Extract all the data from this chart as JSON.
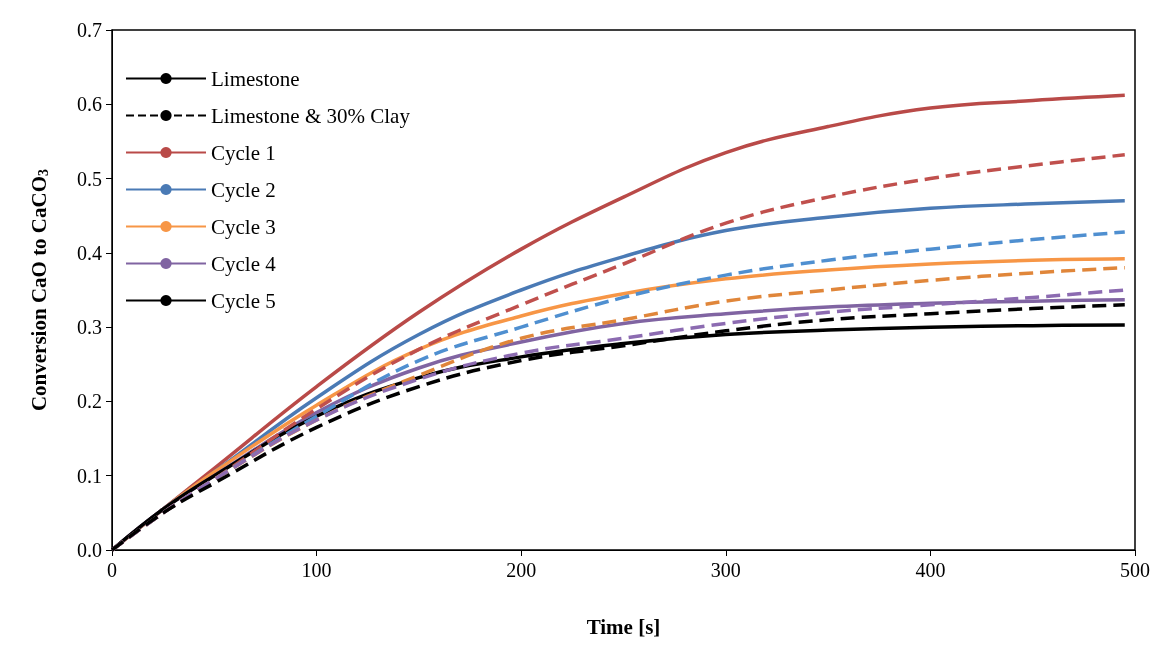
{
  "chart_data": {
    "type": "line",
    "xlabel": "Time [s]",
    "ylabel": "Conversion CaO to CaCO$_{3}$",
    "xlim": [
      0,
      500
    ],
    "xticks": [
      0,
      100,
      200,
      300,
      400,
      500
    ],
    "ylim": [
      0,
      0.7
    ],
    "yticks": [
      {
        "value": 0,
        "label": "0.0"
      },
      0.1,
      0.2,
      0.3,
      0.4,
      0.5,
      0.6,
      0.7
    ],
    "grid": false,
    "legend": "top left",
    "marker": "none",
    "x": [
      0,
      25,
      50,
      100,
      150,
      200,
      250,
      300,
      350,
      400,
      450,
      495
    ],
    "series": [
      {
        "name": "Limestone",
        "color": "#000000",
        "line_style": "solid",
        "values": [
          null,
          null,
          null,
          null,
          null,
          null,
          null,
          null,
          null,
          null,
          null,
          null
        ]
      },
      {
        "name": "Limestone & 30% Clay",
        "color": "#000000",
        "line_style": "dashed",
        "values": [
          null,
          null,
          null,
          null,
          null,
          null,
          null,
          null,
          null,
          null,
          null,
          null
        ]
      },
      {
        "name": "Cycle 1",
        "color": "#b94a48",
        "line_style": "solid",
        "values": [
          0,
          0.055,
          0.11,
          0.22,
          0.32,
          0.405,
          0.475,
          0.535,
          0.57,
          0.595,
          0.605,
          0.612
        ]
      },
      {
        "name": "Cycle 2",
        "color": "#4a7ab5",
        "line_style": "solid",
        "values": [
          0,
          0.055,
          0.105,
          0.205,
          0.29,
          0.35,
          0.395,
          0.43,
          0.448,
          0.46,
          0.466,
          0.47
        ]
      },
      {
        "name": "Cycle 3",
        "color": "#f79646",
        "line_style": "solid",
        "values": [
          0,
          0.055,
          0.105,
          0.195,
          0.27,
          0.315,
          0.345,
          0.365,
          0.377,
          0.385,
          0.39,
          0.392
        ]
      },
      {
        "name": "Cycle 4",
        "color": "#8064a2",
        "line_style": "solid",
        "values": [
          0,
          0.055,
          0.1,
          0.185,
          0.245,
          0.28,
          0.305,
          0.318,
          0.327,
          0.332,
          0.335,
          0.337
        ]
      },
      {
        "name": "Cycle 5",
        "color": "#000000",
        "line_style": "solid",
        "values": [
          0,
          0.055,
          0.1,
          0.18,
          0.232,
          0.26,
          0.278,
          0.29,
          0.296,
          0.3,
          0.302,
          0.303
        ]
      },
      {
        "color": "#c0504d",
        "line_style": "dashed",
        "values": [
          0,
          0.05,
          0.095,
          0.19,
          0.27,
          0.33,
          0.385,
          0.44,
          0.475,
          0.5,
          0.518,
          0.532
        ]
      },
      {
        "color": "#4f8fd0",
        "line_style": "dashed",
        "values": [
          0,
          0.05,
          0.095,
          0.18,
          0.255,
          0.3,
          0.34,
          0.37,
          0.39,
          0.405,
          0.418,
          0.428
        ]
      },
      {
        "color": "#e0863a",
        "line_style": "dashed",
        "values": [
          0,
          0.05,
          0.095,
          0.175,
          0.235,
          0.285,
          0.31,
          0.335,
          0.35,
          0.363,
          0.373,
          0.38
        ]
      },
      {
        "color": "#8c6bb1",
        "line_style": "dashed",
        "values": [
          0,
          0.05,
          0.095,
          0.175,
          0.23,
          0.265,
          0.285,
          0.305,
          0.32,
          0.33,
          0.34,
          0.35
        ]
      },
      {
        "color": "#000000",
        "line_style": "dashed",
        "values": [
          0,
          0.05,
          0.09,
          0.165,
          0.22,
          0.255,
          0.275,
          0.295,
          0.31,
          0.318,
          0.325,
          0.33
        ]
      }
    ]
  }
}
